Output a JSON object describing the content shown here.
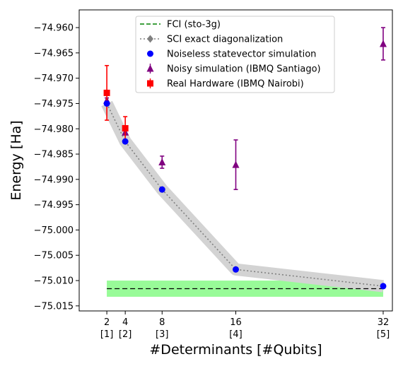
{
  "chart_data": {
    "type": "scatter",
    "xlabel": "#Determinants [#Qubits]",
    "ylabel": "Energy [Ha]",
    "xlim": [
      -1,
      33
    ],
    "ylim": [
      -75.016,
      -74.9565
    ],
    "x_ticks": [
      {
        "x": 2,
        "label": "2",
        "sublabel": "[1]"
      },
      {
        "x": 4,
        "label": "4",
        "sublabel": "[2]"
      },
      {
        "x": 8,
        "label": "8",
        "sublabel": "[3]"
      },
      {
        "x": 16,
        "label": "16",
        "sublabel": "[4]"
      },
      {
        "x": 32,
        "label": "32",
        "sublabel": "[5]"
      }
    ],
    "y_ticks": [
      {
        "y": -74.96,
        "label": "−74.960"
      },
      {
        "y": -74.965,
        "label": "−74.965"
      },
      {
        "y": -74.97,
        "label": "−74.970"
      },
      {
        "y": -74.975,
        "label": "−74.975"
      },
      {
        "y": -74.98,
        "label": "−74.980"
      },
      {
        "y": -74.985,
        "label": "−74.985"
      },
      {
        "y": -74.99,
        "label": "−74.990"
      },
      {
        "y": -74.995,
        "label": "−74.995"
      },
      {
        "y": -75.0,
        "label": "−75.000"
      },
      {
        "y": -75.005,
        "label": "−75.005"
      },
      {
        "y": -75.01,
        "label": "−75.010"
      },
      {
        "y": -75.015,
        "label": "−75.015"
      }
    ],
    "grid": false,
    "legend_position": "top-center",
    "fci": {
      "name": "FCI (sto-3g)",
      "value": -75.0116,
      "band": [
        -75.0132,
        -75.01
      ],
      "x_range": [
        2,
        32
      ],
      "line_color": "#008000",
      "band_color": "#98fb98"
    },
    "sci": {
      "name": "SCI exact diagonalization",
      "x": [
        2,
        4,
        8,
        16,
        32
      ],
      "y": [
        -74.975,
        -74.9825,
        -74.992,
        -75.0078,
        -75.0111
      ],
      "band_halfwidth": 0.0012,
      "line_color": "#808080",
      "band_color": "#d3d3d3"
    },
    "series": [
      {
        "name": "Noiseless statevector simulation",
        "marker": "circle",
        "color": "#0000ff",
        "x": [
          2,
          4,
          8,
          16,
          32
        ],
        "y": [
          -74.975,
          -74.9825,
          -74.992,
          -75.0078,
          -75.0111
        ]
      },
      {
        "name": "Noisy simulation (IBMQ Santiago)",
        "marker": "triangle",
        "color": "#800080",
        "x": [
          2,
          4,
          8,
          16,
          32
        ],
        "y": [
          -74.9744,
          -74.9807,
          -74.9866,
          -74.9871,
          -74.9632
        ],
        "err": [
          0.0005,
          0.0005,
          0.0012,
          0.0049,
          0.0032
        ]
      },
      {
        "name": "Real Hardware (IBMQ Nairobi)",
        "marker": "square",
        "color": "#ff0000",
        "x": [
          2,
          4
        ],
        "y": [
          -74.9729,
          -74.9799
        ],
        "err": [
          0.0054,
          0.0023
        ]
      }
    ]
  }
}
